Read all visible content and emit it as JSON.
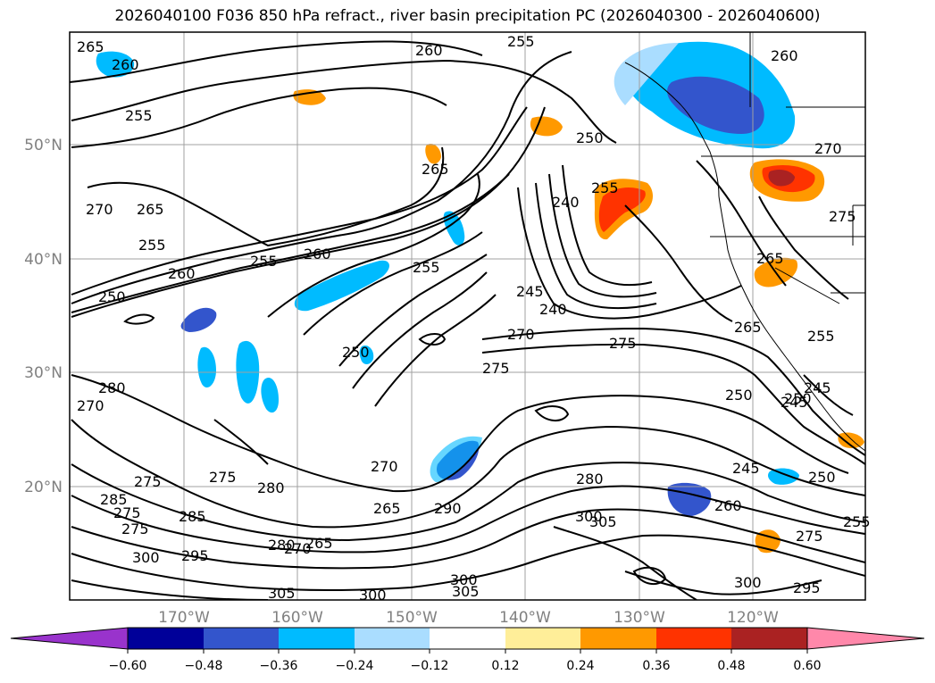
{
  "title": "2026040100 F036 850 hPa refract., river basin precipitation PC (2026040300 - 2026040600)",
  "map": {
    "lat_labels": [
      "50°N",
      "40°N",
      "30°N",
      "20°N"
    ],
    "lon_labels": [
      "170°W",
      "160°W",
      "150°W",
      "140°W",
      "130°W",
      "120°W"
    ],
    "contour_labels": [
      "265",
      "260",
      "260",
      "255",
      "255",
      "250",
      "260",
      "265",
      "270",
      "265",
      "255",
      "260",
      "255",
      "250",
      "260",
      "255",
      "250",
      "270",
      "280",
      "275",
      "275",
      "275",
      "270",
      "280",
      "285",
      "275",
      "285",
      "280",
      "300",
      "295",
      "270",
      "265",
      "265",
      "290",
      "300",
      "305",
      "300",
      "305",
      "280",
      "305",
      "300",
      "275",
      "245",
      "240",
      "270",
      "275",
      "245",
      "250",
      "260",
      "250",
      "265",
      "270",
      "275",
      "255",
      "240",
      "245",
      "265",
      "255",
      "250",
      "245",
      "275",
      "295",
      "300",
      "255"
    ],
    "colors": {
      "purple": "#9933cc",
      "navy": "#000099",
      "blue": "#3355cc",
      "cyan": "#00bbff",
      "lightblue": "#aaddff",
      "lightyellow": "#ffee99",
      "orange": "#ff9900",
      "red": "#ff3300",
      "brick": "#aa2222",
      "pink": "#ff88aa"
    }
  },
  "colorbar": {
    "ticks": [
      "−0.60",
      "−0.48",
      "−0.36",
      "−0.24",
      "−0.12",
      "0.12",
      "0.24",
      "0.36",
      "0.48",
      "0.60"
    ],
    "segment_colors": [
      "#9933cc",
      "#000099",
      "#3355cc",
      "#00bbff",
      "#aaddff",
      "#ffffff",
      "#ffee99",
      "#ff9900",
      "#ff3300",
      "#aa2222",
      "#ff88aa"
    ]
  }
}
